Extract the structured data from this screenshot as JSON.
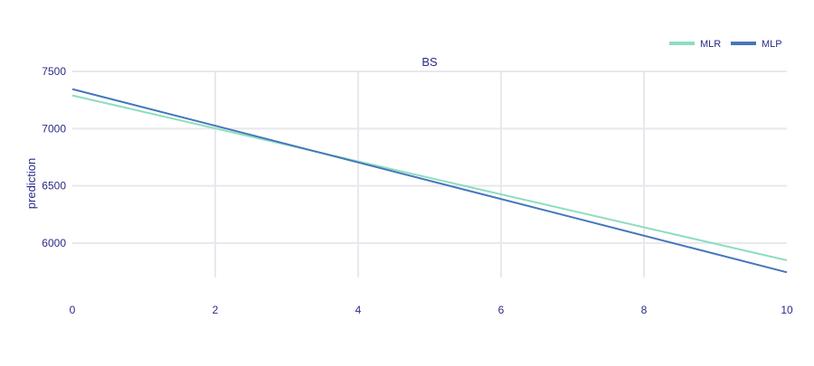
{
  "chart_data": {
    "type": "line",
    "title": "BS",
    "xlabel": "",
    "ylabel": "prediction",
    "xlim": [
      0,
      10
    ],
    "ylim": [
      5700,
      7500
    ],
    "xticks": [
      0,
      2,
      4,
      6,
      8,
      10
    ],
    "yticks": [
      6000,
      6500,
      7000,
      7500
    ],
    "grid": true,
    "legend_position": "top-right",
    "series": [
      {
        "name": "MLR",
        "color": "#8dddc0",
        "x": [
          0,
          10
        ],
        "y": [
          7290,
          5850
        ]
      },
      {
        "name": "MLP",
        "color": "#4477bb",
        "x": [
          0,
          10
        ],
        "y": [
          7345,
          5745
        ]
      }
    ]
  },
  "colors": {
    "text": "#2a2a8a",
    "grid": "#e8e8ee"
  }
}
